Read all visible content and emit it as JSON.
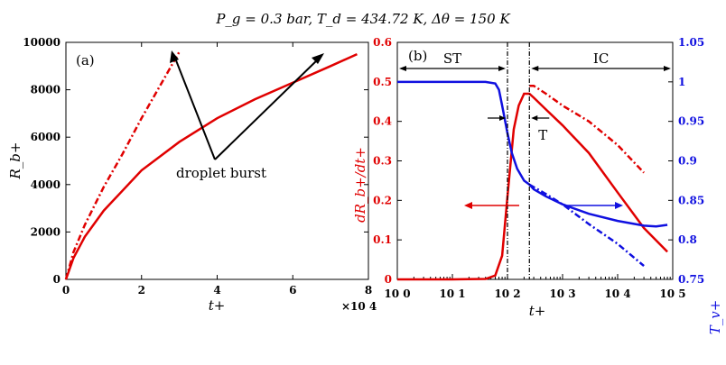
{
  "figure": {
    "title": "P_g = 0.3 bar, T_d = 434.72 K, Δθ = 150 K"
  },
  "colors": {
    "red": "#e00000",
    "blue": "#1010e0",
    "black": "#000000"
  },
  "chart_data": [
    {
      "panel": "(a)",
      "type": "line",
      "xlabel": "t+",
      "ylabel": "R_b+",
      "x_multiplier": "×10 4",
      "xlim": [
        0,
        80000
      ],
      "ylim": [
        0,
        10000
      ],
      "x_ticks": [
        "0",
        "2",
        "4",
        "6",
        "8"
      ],
      "y_ticks": [
        "0",
        "2000",
        "4000",
        "6000",
        "8000",
        "10000"
      ],
      "annotation": "droplet burst",
      "series": [
        {
          "style": "dash-dot",
          "color": "red",
          "x": [
            0,
            2000,
            5000,
            10000,
            15000,
            20000,
            25000,
            30000
          ],
          "y": [
            0,
            1150,
            2300,
            3900,
            5300,
            6800,
            8200,
            9600
          ]
        },
        {
          "style": "solid",
          "color": "red",
          "x": [
            0,
            2000,
            5000,
            10000,
            20000,
            30000,
            40000,
            50000,
            60000,
            70000,
            77000
          ],
          "y": [
            0,
            900,
            1800,
            2900,
            4600,
            5800,
            6800,
            7600,
            8300,
            9000,
            9500
          ]
        }
      ]
    },
    {
      "panel": "(b)",
      "type": "line",
      "xlabel": "t+",
      "ylabel_left": "dR_b+/dt+",
      "ylabel_right": "T_v+",
      "x_scale": "log",
      "xlim": [
        1,
        100000
      ],
      "ylim_left": [
        0,
        0.6
      ],
      "ylim_right": [
        0.75,
        1.05
      ],
      "x_ticks": [
        "10 0",
        "10 1",
        "10 2",
        "10 3",
        "10 4",
        "10 5"
      ],
      "y_ticks_left": [
        "0",
        "0.1",
        "0.2",
        "0.3",
        "0.4",
        "0.5",
        "0.6"
      ],
      "y_ticks_right": [
        "0.75",
        "0.8",
        "0.85",
        "0.9",
        "0.95",
        "1",
        "1.05"
      ],
      "region_labels": {
        "st": "ST",
        "ic": "IC",
        "t": "T"
      },
      "region_bounds_t": [
        100,
        250
      ],
      "series": [
        {
          "axis": "left",
          "color": "red",
          "style": "solid",
          "x": [
            1,
            10,
            40,
            60,
            80,
            100,
            130,
            160,
            200,
            250,
            300,
            500,
            1000,
            3000,
            10000,
            30000,
            80000
          ],
          "y": [
            0,
            0,
            0.001,
            0.01,
            0.06,
            0.21,
            0.38,
            0.44,
            0.47,
            0.47,
            0.46,
            0.43,
            0.39,
            0.32,
            0.22,
            0.13,
            0.07
          ]
        },
        {
          "axis": "left",
          "color": "red",
          "style": "dash-dot",
          "x": [
            250,
            300,
            500,
            1000,
            3000,
            10000,
            30000
          ],
          "y": [
            0.49,
            0.49,
            0.47,
            0.44,
            0.4,
            0.34,
            0.27
          ]
        },
        {
          "axis": "right",
          "color": "blue",
          "style": "solid",
          "x": [
            1,
            10,
            40,
            60,
            70,
            80,
            100,
            120,
            150,
            200,
            250,
            300,
            500,
            1000,
            3000,
            10000,
            30000,
            50000,
            80000
          ],
          "y": [
            1.0,
            1.0,
            1.0,
            0.998,
            0.99,
            0.97,
            0.935,
            0.91,
            0.89,
            0.875,
            0.87,
            0.864,
            0.855,
            0.845,
            0.833,
            0.824,
            0.818,
            0.817,
            0.819
          ]
        },
        {
          "axis": "right",
          "color": "blue",
          "style": "dash-dot",
          "x": [
            250,
            500,
            1000,
            3000,
            10000,
            30000
          ],
          "y": [
            0.87,
            0.858,
            0.845,
            0.82,
            0.795,
            0.767
          ]
        }
      ]
    }
  ]
}
